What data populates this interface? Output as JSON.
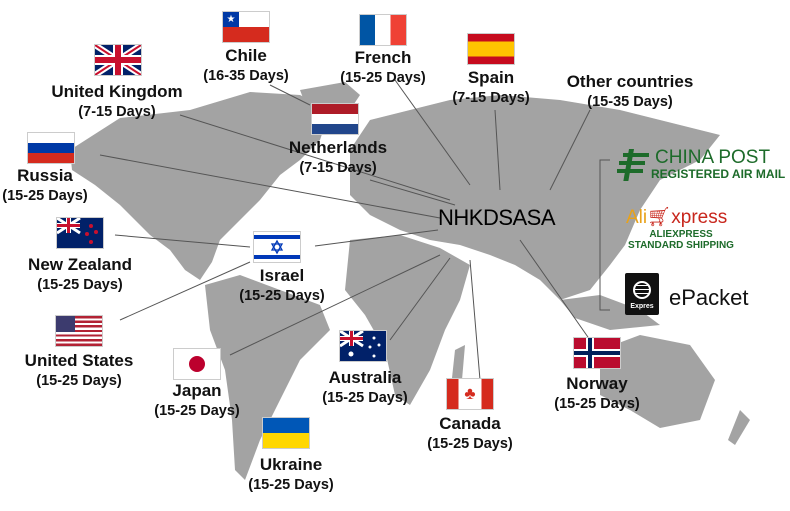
{
  "center_label": "NHKDSASA",
  "colors": {
    "land": "#a3a3a3",
    "lines": "#555555",
    "china_post_green": "#1d6b2a",
    "aliexpress_red": "#c8261c"
  },
  "destinations": [
    {
      "id": "chile",
      "name": "Chile",
      "days": "(16-35 Days)"
    },
    {
      "id": "french",
      "name": "French",
      "days": "(15-25 Days)"
    },
    {
      "id": "spain",
      "name": "Spain",
      "days": "(7-15 Days)"
    },
    {
      "id": "other",
      "name": "Other countries",
      "days": "(15-35 Days)"
    },
    {
      "id": "uk",
      "name": "United Kingdom",
      "days": "(7-15 Days)"
    },
    {
      "id": "netherlands",
      "name": "Netherlands",
      "days": "(7-15 Days)"
    },
    {
      "id": "russia",
      "name": "Russia",
      "days": "(15-25 Days)"
    },
    {
      "id": "nz",
      "name": "New Zealand",
      "days": "(15-25 Days)"
    },
    {
      "id": "israel",
      "name": "Israel",
      "days": "(15-25 Days)"
    },
    {
      "id": "us",
      "name": "United States",
      "days": "(15-25 Days)"
    },
    {
      "id": "japan",
      "name": "Japan",
      "days": "(15-25 Days)"
    },
    {
      "id": "australia",
      "name": "Australia",
      "days": "(15-25 Days)"
    },
    {
      "id": "ukraine",
      "name": "Ukraine",
      "days": "(15-25 Days)"
    },
    {
      "id": "canada",
      "name": "Canada",
      "days": "(15-25 Days)"
    },
    {
      "id": "norway",
      "name": "Norway",
      "days": "(15-25 Days)"
    }
  ],
  "carriers": {
    "china_post": {
      "title": "CHINA POST",
      "subtitle": "REGISTERED AIR MAIL"
    },
    "aliexpress": {
      "logo_ali": "Ali",
      "logo_express": "xpress",
      "subtitle_1": "ALIEXPRESS",
      "subtitle_2": "STANDARD SHIPPING"
    },
    "epacket": {
      "title": "ePacket",
      "logo_text": "Expres"
    }
  }
}
